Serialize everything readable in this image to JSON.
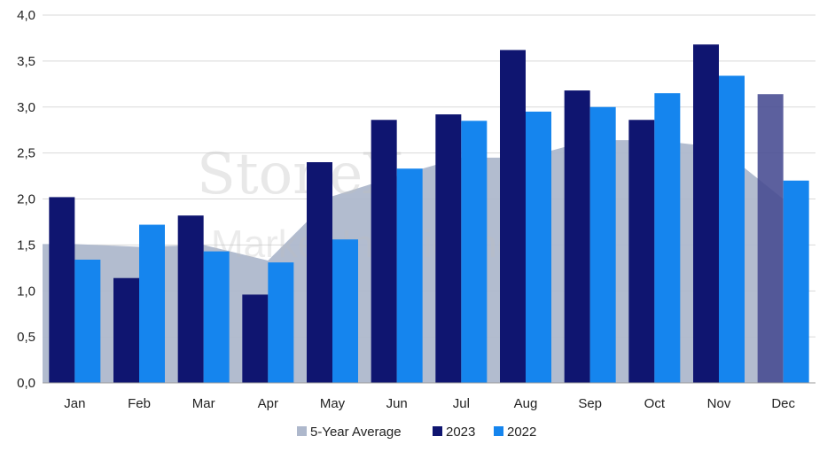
{
  "chart_data": {
    "type": "bar",
    "categories": [
      "Jan",
      "Feb",
      "Mar",
      "Apr",
      "May",
      "Jun",
      "Jul",
      "Aug",
      "Sep",
      "Oct",
      "Nov",
      "Dec"
    ],
    "series": [
      {
        "name": "2023",
        "color": "#0f1570",
        "values": [
          2.02,
          1.14,
          1.82,
          0.96,
          2.4,
          2.86,
          2.92,
          3.62,
          3.18,
          2.86,
          3.68,
          3.14
        ]
      },
      {
        "name": "2022",
        "color": "#1585ee",
        "values": [
          1.34,
          1.72,
          1.43,
          1.31,
          1.56,
          2.33,
          2.85,
          2.95,
          3.0,
          3.15,
          3.34,
          2.2
        ]
      }
    ],
    "area": {
      "name": "5-Year Average",
      "color": "#aeb8cc",
      "values": [
        1.51,
        1.48,
        1.5,
        1.33,
        2.03,
        2.25,
        2.45,
        2.45,
        2.64,
        2.64,
        2.56,
        2.0
      ]
    },
    "ylim": [
      0,
      4
    ],
    "yticks": [
      "0,0",
      "0,5",
      "1,0",
      "1,5",
      "2,0",
      "2,5",
      "3,0",
      "3,5",
      "4,0"
    ],
    "ytick_values": [
      0,
      0.5,
      1,
      1.5,
      2,
      2.5,
      3,
      3.5,
      4
    ],
    "grid": true,
    "legend_position": "bottom",
    "highlight_color": "#454a91",
    "watermark": {
      "line1": "StoneX",
      "line2": "Market Intelligence"
    }
  },
  "legend": {
    "avg": "5-Year Average",
    "s2023": "2023",
    "s2022": "2022"
  }
}
